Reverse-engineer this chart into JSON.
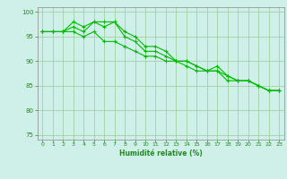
{
  "x": [
    0,
    1,
    2,
    3,
    4,
    5,
    6,
    7,
    8,
    9,
    10,
    11,
    12,
    13,
    14,
    15,
    16,
    17,
    18,
    19,
    20,
    21,
    22,
    23
  ],
  "series1": [
    96,
    96,
    96,
    97,
    96,
    98,
    98,
    98,
    96,
    95,
    93,
    93,
    92,
    90,
    90,
    89,
    88,
    88,
    87,
    86,
    86,
    85,
    84,
    84
  ],
  "series2": [
    96,
    96,
    96,
    98,
    97,
    98,
    97,
    98,
    95,
    94,
    92,
    92,
    91,
    90,
    90,
    89,
    88,
    89,
    87,
    86,
    86,
    85,
    84,
    84
  ],
  "series3": [
    96,
    96,
    96,
    96,
    95,
    96,
    94,
    94,
    93,
    92,
    91,
    91,
    90,
    90,
    89,
    88,
    88,
    88,
    86,
    86,
    86,
    85,
    84,
    84
  ],
  "line_color": "#00bb00",
  "bg_color": "#cff0e8",
  "grid_color": "#99cc99",
  "axis_color": "#228822",
  "xlabel": "Humidité relative (%)",
  "ylim": [
    74,
    101
  ],
  "xlim": [
    -0.5,
    23.5
  ],
  "yticks": [
    75,
    80,
    85,
    90,
    95,
    100
  ],
  "xticks": [
    0,
    1,
    2,
    3,
    4,
    5,
    6,
    7,
    8,
    9,
    10,
    11,
    12,
    13,
    14,
    15,
    16,
    17,
    18,
    19,
    20,
    21,
    22,
    23
  ]
}
